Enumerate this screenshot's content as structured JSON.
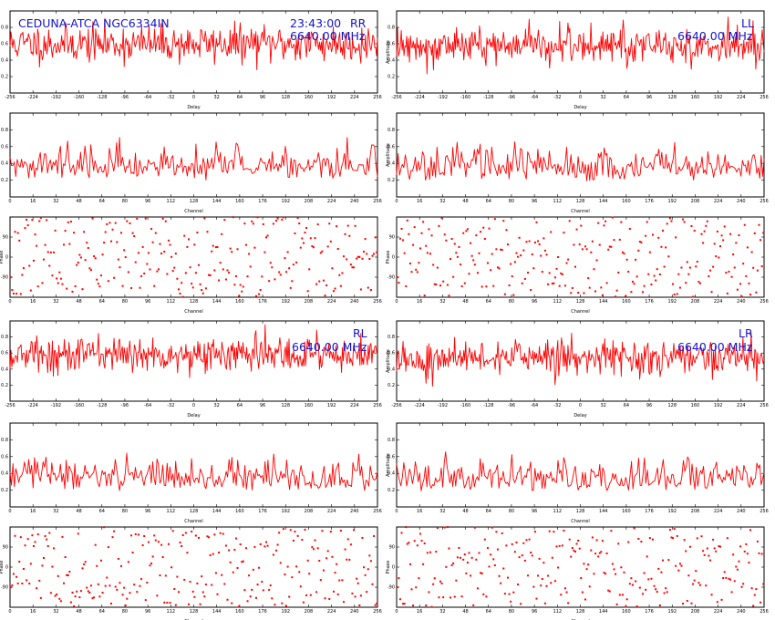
{
  "header": {
    "source": "CEDUNA-ATCA  NGC6334IN",
    "time": "23:43:00",
    "frequency": "6640.00 MHz"
  },
  "quadrants": [
    {
      "id": "RR",
      "label": "RR",
      "show_source": true,
      "show_time": true
    },
    {
      "id": "LL",
      "label": "LL",
      "show_source": false,
      "show_time": false
    },
    {
      "id": "RL",
      "label": "RL",
      "show_source": false,
      "show_time": false
    },
    {
      "id": "LR",
      "label": "LR",
      "show_source": false,
      "show_time": false
    }
  ],
  "panel_labels": {
    "delay_x": "Delay",
    "delay_y": "Amplitude",
    "channel_x": "Channel",
    "channel_y": "Amplitude",
    "phase_x": "Channel",
    "phase_y": "Phase"
  },
  "chart_data": [
    {
      "panel": "RR-delay",
      "type": "line",
      "series": [
        {
          "noise_style": "gaussian",
          "points": 400,
          "seed": 11,
          "level": 0.6,
          "spread": 0.25
        }
      ],
      "xlim": [
        -256,
        256
      ],
      "xticks": [
        -256,
        -224,
        -192,
        -160,
        -128,
        -96,
        -64,
        -32,
        0,
        32,
        64,
        96,
        128,
        160,
        192,
        224,
        256
      ],
      "ylim": [
        0,
        1
      ],
      "yticks": [
        0.2,
        0.4,
        0.6,
        0.8
      ],
      "xlabel": "Delay",
      "ylabel": ""
    },
    {
      "panel": "RR-amplitude",
      "type": "line",
      "series": [
        {
          "noise_style": "rayleigh",
          "points": 256,
          "seed": 21,
          "level": 0.2,
          "spread": 0.25
        }
      ],
      "xlim": [
        0,
        256
      ],
      "xticks": [
        0,
        16,
        32,
        48,
        64,
        80,
        96,
        112,
        128,
        144,
        160,
        176,
        192,
        208,
        224,
        240,
        256
      ],
      "ylim": [
        0,
        1
      ],
      "yticks": [
        0.2,
        0.4,
        0.6,
        0.8
      ],
      "xlabel": "Channel",
      "ylabel": ""
    },
    {
      "panel": "RR-phase",
      "type": "scatter",
      "series": [
        {
          "noise_style": "uniform",
          "points": 256,
          "seed": 31
        }
      ],
      "xlim": [
        0,
        256
      ],
      "xticks": [
        0,
        16,
        32,
        48,
        64,
        80,
        96,
        112,
        128,
        144,
        160,
        176,
        192,
        208,
        224,
        240,
        256
      ],
      "ylim": [
        -180,
        180
      ],
      "yticks": [
        -90,
        0,
        90
      ],
      "xlabel": "Channel",
      "ylabel": "Phase"
    },
    {
      "panel": "LL-delay",
      "type": "line",
      "series": [
        {
          "noise_style": "gaussian",
          "points": 400,
          "seed": 12,
          "level": 0.58,
          "spread": 0.25
        }
      ],
      "xlim": [
        -256,
        256
      ],
      "xticks": [
        -256,
        -224,
        -192,
        -160,
        -128,
        -96,
        -64,
        -32,
        0,
        32,
        64,
        96,
        128,
        160,
        192,
        224,
        256
      ],
      "ylim": [
        0,
        1
      ],
      "yticks": [
        0.2,
        0.4,
        0.6,
        0.8
      ],
      "xlabel": "Delay",
      "ylabel": "Amplitude"
    },
    {
      "panel": "LL-amplitude",
      "type": "line",
      "series": [
        {
          "noise_style": "rayleigh",
          "points": 256,
          "seed": 22,
          "level": 0.18,
          "spread": 0.25
        }
      ],
      "xlim": [
        0,
        256
      ],
      "xticks": [
        0,
        16,
        32,
        48,
        64,
        80,
        96,
        112,
        128,
        144,
        160,
        176,
        192,
        208,
        224,
        240,
        256
      ],
      "ylim": [
        0,
        1
      ],
      "yticks": [
        0.2,
        0.4,
        0.6,
        0.8
      ],
      "xlabel": "Channel",
      "ylabel": "Amplitude"
    },
    {
      "panel": "LL-phase",
      "type": "scatter",
      "series": [
        {
          "noise_style": "uniform",
          "points": 256,
          "seed": 32
        }
      ],
      "xlim": [
        0,
        256
      ],
      "xticks": [
        0,
        16,
        32,
        48,
        64,
        80,
        96,
        112,
        128,
        144,
        160,
        176,
        192,
        208,
        224,
        240,
        256
      ],
      "ylim": [
        -180,
        180
      ],
      "yticks": [
        -90,
        0,
        90
      ],
      "xlabel": "Channel",
      "ylabel": "Phase"
    },
    {
      "panel": "RL-delay",
      "type": "line",
      "series": [
        {
          "noise_style": "gaussian",
          "points": 400,
          "seed": 13,
          "level": 0.58,
          "spread": 0.25
        }
      ],
      "xlim": [
        -256,
        256
      ],
      "xticks": [
        -256,
        -224,
        -192,
        -160,
        -128,
        -96,
        -64,
        -32,
        0,
        32,
        64,
        96,
        128,
        160,
        192,
        224,
        256
      ],
      "ylim": [
        0,
        1
      ],
      "yticks": [
        0.2,
        0.4,
        0.6,
        0.8
      ],
      "xlabel": "Delay",
      "ylabel": ""
    },
    {
      "panel": "RL-amplitude",
      "type": "line",
      "series": [
        {
          "noise_style": "rayleigh",
          "points": 256,
          "seed": 23,
          "level": 0.18,
          "spread": 0.25
        }
      ],
      "xlim": [
        0,
        256
      ],
      "xticks": [
        0,
        16,
        32,
        48,
        64,
        80,
        96,
        112,
        128,
        144,
        160,
        176,
        192,
        208,
        224,
        240,
        256
      ],
      "ylim": [
        0,
        1
      ],
      "yticks": [
        0.2,
        0.4,
        0.6,
        0.8
      ],
      "xlabel": "Channel",
      "ylabel": ""
    },
    {
      "panel": "RL-phase",
      "type": "scatter",
      "series": [
        {
          "noise_style": "uniform",
          "points": 256,
          "seed": 33
        }
      ],
      "xlim": [
        0,
        256
      ],
      "xticks": [
        0,
        16,
        32,
        48,
        64,
        80,
        96,
        112,
        128,
        144,
        160,
        176,
        192,
        208,
        224,
        240,
        256
      ],
      "ylim": [
        -180,
        180
      ],
      "yticks": [
        -90,
        0,
        90
      ],
      "xlabel": "Channel",
      "ylabel": "Phase"
    },
    {
      "panel": "LR-delay",
      "type": "line",
      "series": [
        {
          "noise_style": "gaussian",
          "points": 400,
          "seed": 14,
          "level": 0.55,
          "spread": 0.25
        }
      ],
      "xlim": [
        -256,
        256
      ],
      "xticks": [
        -256,
        -224,
        -192,
        -160,
        -128,
        -96,
        -64,
        -32,
        0,
        32,
        64,
        96,
        128,
        160,
        192,
        224,
        256
      ],
      "ylim": [
        0,
        1
      ],
      "yticks": [
        0.2,
        0.4,
        0.6,
        0.8
      ],
      "xlabel": "Delay",
      "ylabel": "Amplitude"
    },
    {
      "panel": "LR-amplitude",
      "type": "line",
      "series": [
        {
          "noise_style": "rayleigh",
          "points": 256,
          "seed": 24,
          "level": 0.18,
          "spread": 0.25
        }
      ],
      "xlim": [
        0,
        256
      ],
      "xticks": [
        0,
        16,
        32,
        48,
        64,
        80,
        96,
        112,
        128,
        144,
        160,
        176,
        192,
        208,
        224,
        240,
        256
      ],
      "ylim": [
        0,
        1
      ],
      "yticks": [
        0.2,
        0.4,
        0.6,
        0.8
      ],
      "xlabel": "Channel",
      "ylabel": "Amplitude"
    },
    {
      "panel": "LR-phase",
      "type": "scatter",
      "series": [
        {
          "noise_style": "uniform",
          "points": 256,
          "seed": 34
        }
      ],
      "xlim": [
        0,
        256
      ],
      "xticks": [
        0,
        16,
        32,
        48,
        64,
        80,
        96,
        112,
        128,
        144,
        160,
        176,
        192,
        208,
        224,
        240,
        256
      ],
      "ylim": [
        -180,
        180
      ],
      "yticks": [
        -90,
        0,
        90
      ],
      "xlabel": "Channel",
      "ylabel": "Phase"
    }
  ],
  "colors": {
    "trace": "#ff0000",
    "annotation": "#1414cc",
    "axes": "#000000"
  }
}
